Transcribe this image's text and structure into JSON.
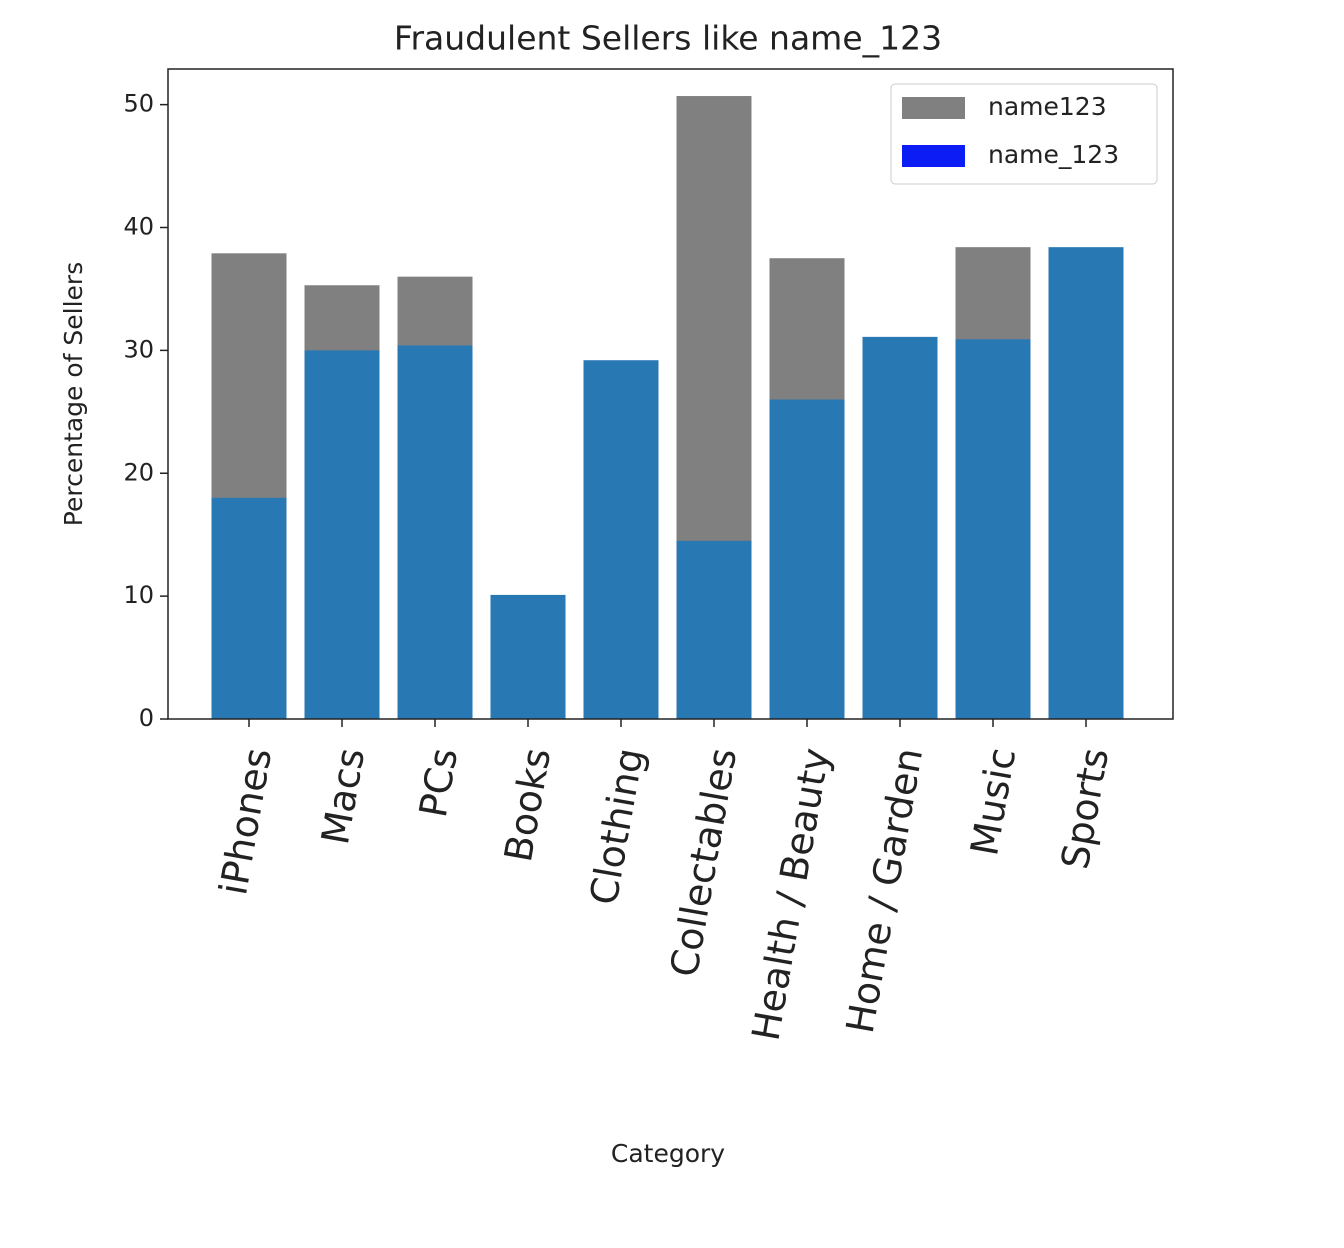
{
  "chart_data": {
    "type": "bar",
    "mode": "overlap",
    "title": "Fraudulent Sellers like name_123",
    "x_label": "Category",
    "y_label": "Percentage of Sellers",
    "categories": [
      "iPhones",
      "Macs",
      "PCs",
      "Books",
      "Clothing",
      "Collectables",
      "Health / Beauty",
      "Home / Garden",
      "Music",
      "Sports"
    ],
    "series": [
      {
        "name": "name123",
        "color": "#808080",
        "legend_color": "#808080",
        "values": [
          37.9,
          35.3,
          36.0,
          null,
          null,
          50.7,
          37.5,
          null,
          38.4,
          null
        ]
      },
      {
        "name": "name_123",
        "color": "#2878b4",
        "legend_color": "#0c1cf5",
        "values": [
          18.0,
          30.0,
          30.4,
          10.1,
          29.2,
          14.5,
          26.0,
          31.1,
          30.9,
          38.4
        ]
      }
    ],
    "ylim": [
      0,
      52.9
    ],
    "yticks": [
      0,
      10,
      20,
      30,
      40,
      50
    ],
    "grid": false,
    "legend": "upper right"
  }
}
